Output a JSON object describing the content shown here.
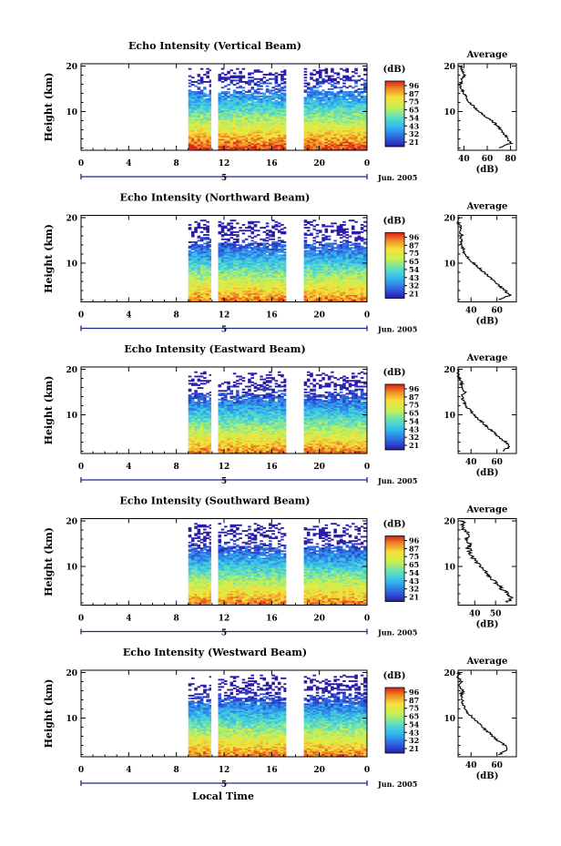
{
  "figure": {
    "xlabel": "Local Time",
    "date": "Jun. 2005"
  },
  "chart_data": [
    {
      "type": "heatmap",
      "title": "Echo Intensity (Vertical Beam)",
      "ylabel": "Height (km)",
      "xticks": [
        "0",
        "4",
        "8",
        "12",
        "16",
        "20",
        "0"
      ],
      "yticks": [
        "10",
        "20"
      ],
      "ylim": [
        1.5,
        20.5
      ],
      "xlim": [
        0,
        24
      ],
      "day_label": "5",
      "date_label": "Jun. 2005",
      "colorbar": {
        "unit": "(dB)",
        "ticks": [
          "96",
          "87",
          "75",
          "65",
          "54",
          "43",
          "32",
          "21"
        ]
      },
      "data_segments_hours": [
        [
          9,
          10.9
        ],
        [
          11.5,
          17.2
        ],
        [
          18.7,
          24
        ]
      ],
      "profile": {
        "title": "Average",
        "xlabel": "(dB)",
        "xticks": [
          "40",
          "60",
          "80"
        ],
        "xlim": [
          35,
          85
        ],
        "yticks": [
          "10",
          "20"
        ],
        "height_km": [
          2,
          3,
          4,
          5,
          6,
          7,
          8,
          9,
          10,
          11,
          12,
          13,
          14,
          15,
          16,
          17,
          18,
          19,
          20
        ],
        "values_db": [
          70,
          80,
          78,
          75,
          72,
          68,
          64,
          58,
          53,
          49,
          45,
          42,
          40,
          38,
          37,
          38,
          41,
          39,
          37
        ]
      }
    },
    {
      "type": "heatmap",
      "title": "Echo Intensity (Northward Beam)",
      "ylabel": "Height (km)",
      "xticks": [
        "0",
        "4",
        "8",
        "12",
        "16",
        "20",
        "0"
      ],
      "yticks": [
        "10",
        "20"
      ],
      "ylim": [
        1.5,
        20.5
      ],
      "xlim": [
        0,
        24
      ],
      "day_label": "5",
      "date_label": "Jun. 2005",
      "colorbar": {
        "unit": "(dB)",
        "ticks": [
          "96",
          "87",
          "75",
          "65",
          "54",
          "43",
          "32",
          "21"
        ]
      },
      "data_segments_hours": [
        [
          9,
          10.9
        ],
        [
          11.5,
          17.2
        ],
        [
          18.7,
          24
        ]
      ],
      "profile": {
        "title": "Average",
        "xlabel": "(dB)",
        "xticks": [
          "40",
          "60"
        ],
        "xlim": [
          30,
          75
        ],
        "yticks": [
          "10",
          "20"
        ],
        "height_km": [
          2,
          3,
          4,
          5,
          6,
          7,
          8,
          9,
          10,
          11,
          12,
          13,
          14,
          15,
          16,
          17,
          18,
          19,
          20
        ],
        "values_db": [
          62,
          70,
          66,
          62,
          58,
          54,
          50,
          46,
          42,
          38,
          35,
          34,
          33,
          32,
          33,
          31,
          32,
          30,
          31
        ]
      }
    },
    {
      "type": "heatmap",
      "title": "Echo Intensity (Eastward Beam)",
      "ylabel": "Height (km)",
      "xticks": [
        "0",
        "4",
        "8",
        "12",
        "16",
        "20",
        "0"
      ],
      "yticks": [
        "10",
        "20"
      ],
      "ylim": [
        1.5,
        20.5
      ],
      "xlim": [
        0,
        24
      ],
      "day_label": "5",
      "date_label": "Jun. 2005",
      "colorbar": {
        "unit": "(dB)",
        "ticks": [
          "96",
          "87",
          "75",
          "65",
          "54",
          "43",
          "32",
          "21"
        ]
      },
      "data_segments_hours": [
        [
          9,
          10.9
        ],
        [
          11.5,
          17.2
        ],
        [
          18.7,
          24
        ]
      ],
      "profile": {
        "title": "Average",
        "xlabel": "(dB)",
        "xticks": [
          "40",
          "60"
        ],
        "xlim": [
          30,
          75
        ],
        "yticks": [
          "10",
          "20"
        ],
        "height_km": [
          2,
          3,
          4,
          5,
          6,
          7,
          8,
          9,
          10,
          11,
          12,
          13,
          14,
          15,
          16,
          17,
          18,
          19,
          20
        ],
        "values_db": [
          64,
          70,
          67,
          62,
          58,
          54,
          50,
          46,
          42,
          39,
          36,
          34,
          33,
          35,
          32,
          33,
          31,
          30,
          31
        ]
      }
    },
    {
      "type": "heatmap",
      "title": "Echo Intensity (Southward Beam)",
      "ylabel": "Height (km)",
      "xticks": [
        "0",
        "4",
        "8",
        "12",
        "16",
        "20",
        "0"
      ],
      "yticks": [
        "10",
        "20"
      ],
      "ylim": [
        1.5,
        20.5
      ],
      "xlim": [
        0,
        24
      ],
      "day_label": "5",
      "date_label": "Jun. 2005",
      "colorbar": {
        "unit": "(dB)",
        "ticks": [
          "96",
          "87",
          "75",
          "65",
          "54",
          "43",
          "32",
          "21"
        ]
      },
      "data_segments_hours": [
        [
          9,
          10.9
        ],
        [
          11.5,
          17.2
        ],
        [
          18.7,
          24
        ]
      ],
      "profile": {
        "title": "Average",
        "xlabel": "(dB)",
        "xticks": [
          "40",
          "50"
        ],
        "xlim": [
          32,
          60
        ],
        "yticks": [
          "10",
          "20"
        ],
        "height_km": [
          2,
          3,
          4,
          5,
          6,
          7,
          8,
          9,
          10,
          11,
          12,
          13,
          14,
          15,
          16,
          17,
          18,
          19,
          20
        ],
        "values_db": [
          55,
          58,
          56,
          53,
          51,
          49,
          47,
          45,
          43,
          41,
          39,
          38,
          37,
          38,
          36,
          37,
          35,
          34,
          35
        ]
      }
    },
    {
      "type": "heatmap",
      "title": "Echo Intensity (Westward Beam)",
      "ylabel": "Height (km)",
      "xticks": [
        "0",
        "4",
        "8",
        "12",
        "16",
        "20",
        "0"
      ],
      "yticks": [
        "10",
        "20"
      ],
      "ylim": [
        1.5,
        20.5
      ],
      "xlim": [
        0,
        24
      ],
      "day_label": "5",
      "date_label": "Jun. 2005",
      "colorbar": {
        "unit": "(dB)",
        "ticks": [
          "96",
          "87",
          "75",
          "65",
          "54",
          "43",
          "32",
          "21"
        ]
      },
      "data_segments_hours": [
        [
          9,
          10.9
        ],
        [
          11.5,
          17.2
        ],
        [
          18.7,
          24
        ]
      ],
      "profile": {
        "title": "Average",
        "xlabel": "(dB)",
        "xticks": [
          "40",
          "60"
        ],
        "xlim": [
          30,
          75
        ],
        "yticks": [
          "10",
          "20"
        ],
        "height_km": [
          2,
          3,
          4,
          5,
          6,
          7,
          8,
          9,
          10,
          11,
          12,
          13,
          14,
          15,
          16,
          17,
          18,
          19,
          20
        ],
        "values_db": [
          62,
          68,
          66,
          61,
          57,
          53,
          49,
          45,
          42,
          38,
          36,
          34,
          33,
          32,
          34,
          31,
          33,
          30,
          31
        ]
      }
    }
  ]
}
